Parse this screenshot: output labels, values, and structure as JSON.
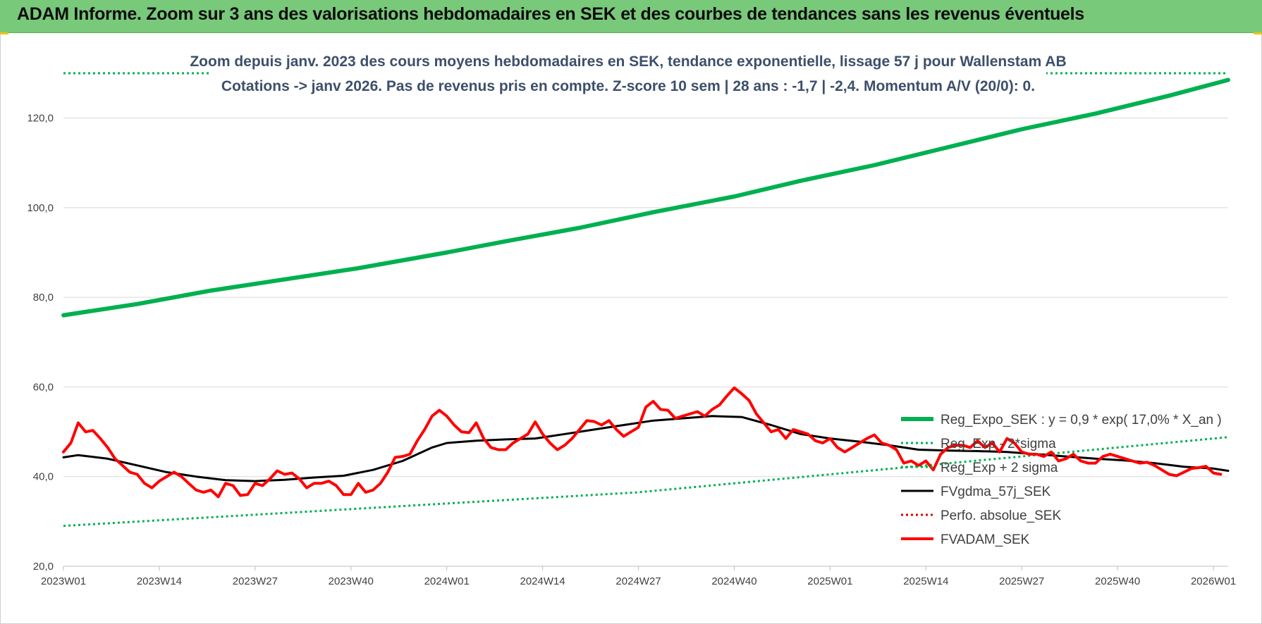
{
  "header": {
    "title": "ADAM Informe. Zoom sur 3 ans des valorisations hebdomadaires en SEK et des courbes de tendances sans les revenus éventuels"
  },
  "chart_data": {
    "type": "line",
    "subtitle_line1": "Zoom depuis janv. 2023 des cours moyens hebdomadaires en SEK, tendance exponentielle, lissage 57 j pour Wallenstam AB",
    "subtitle_line2": "Cotations -> janv 2026. Pas de revenus pris en compte. Z-score 10 sem | 28 ans : -1,7 | -2,4. Momentum A/V (20/0): 0.",
    "xlabel": "",
    "ylabel": "",
    "ylim": [
      20,
      130
    ],
    "xlim": [
      0,
      158
    ],
    "y_ticks": [
      {
        "value": 20,
        "label": "20,0"
      },
      {
        "value": 40,
        "label": "40,0"
      },
      {
        "value": 60,
        "label": "60,0"
      },
      {
        "value": 80,
        "label": "80,0"
      },
      {
        "value": 100,
        "label": "100,0"
      },
      {
        "value": 120,
        "label": "120,0"
      }
    ],
    "x_ticks": [
      {
        "index": 0,
        "label": "2023W01"
      },
      {
        "index": 13,
        "label": "2023W14"
      },
      {
        "index": 26,
        "label": "2023W27"
      },
      {
        "index": 39,
        "label": "2023W40"
      },
      {
        "index": 52,
        "label": "2024W01"
      },
      {
        "index": 65,
        "label": "2024W14"
      },
      {
        "index": 78,
        "label": "2024W27"
      },
      {
        "index": 91,
        "label": "2024W40"
      },
      {
        "index": 104,
        "label": "2025W01"
      },
      {
        "index": 117,
        "label": "2025W14"
      },
      {
        "index": 130,
        "label": "2025W27"
      },
      {
        "index": 143,
        "label": "2025W40"
      },
      {
        "index": 156,
        "label": "2026W01"
      }
    ],
    "legend_position": "right",
    "series": [
      {
        "name": "Reg_Expo_SEK : y = 0,9 * exp( 17,0% * X_an )",
        "color": "#00b050",
        "style": "solid",
        "width": 6,
        "points": [
          [
            0,
            76.0
          ],
          [
            10,
            78.5
          ],
          [
            20,
            81.5
          ],
          [
            30,
            84.0
          ],
          [
            40,
            86.5
          ],
          [
            52,
            90.0
          ],
          [
            60,
            92.5
          ],
          [
            70,
            95.5
          ],
          [
            80,
            99.0
          ],
          [
            91,
            102.5
          ],
          [
            100,
            106.0
          ],
          [
            110,
            109.5
          ],
          [
            120,
            113.5
          ],
          [
            130,
            117.5
          ],
          [
            140,
            121.0
          ],
          [
            150,
            125.0
          ],
          [
            158,
            128.5
          ]
        ]
      },
      {
        "name": "Reg_Exp - 2*sigma",
        "color": "#00b050",
        "style": "dotted",
        "width": 3,
        "points": [
          [
            0,
            29.0
          ],
          [
            26,
            31.5
          ],
          [
            52,
            34.0
          ],
          [
            78,
            36.5
          ],
          [
            104,
            40.5
          ],
          [
            130,
            44.5
          ],
          [
            158,
            48.8
          ]
        ]
      },
      {
        "name": "Reg_Exp + 2 sigma",
        "color": "#00b050",
        "style": "dotted",
        "width": 3,
        "points": [
          [
            0,
            130.0
          ],
          [
            158,
            130.0
          ]
        ]
      },
      {
        "name": "FVgdma_57j_SEK",
        "color": "#000000",
        "style": "solid",
        "width": 3,
        "points": [
          [
            0,
            44.3
          ],
          [
            2,
            44.8
          ],
          [
            6,
            44.0
          ],
          [
            10,
            42.5
          ],
          [
            14,
            41.0
          ],
          [
            18,
            40.0
          ],
          [
            22,
            39.2
          ],
          [
            26,
            39.0
          ],
          [
            30,
            39.3
          ],
          [
            34,
            39.8
          ],
          [
            38,
            40.2
          ],
          [
            42,
            41.5
          ],
          [
            46,
            43.5
          ],
          [
            50,
            46.5
          ],
          [
            52,
            47.5
          ],
          [
            56,
            48.0
          ],
          [
            60,
            48.3
          ],
          [
            64,
            48.5
          ],
          [
            68,
            49.5
          ],
          [
            72,
            50.5
          ],
          [
            76,
            51.5
          ],
          [
            80,
            52.5
          ],
          [
            84,
            53.0
          ],
          [
            88,
            53.5
          ],
          [
            92,
            53.3
          ],
          [
            96,
            51.5
          ],
          [
            100,
            49.5
          ],
          [
            104,
            48.5
          ],
          [
            108,
            47.8
          ],
          [
            112,
            47.0
          ],
          [
            116,
            46.0
          ],
          [
            120,
            45.8
          ],
          [
            124,
            45.7
          ],
          [
            128,
            45.5
          ],
          [
            132,
            45.0
          ],
          [
            136,
            44.5
          ],
          [
            140,
            44.0
          ],
          [
            144,
            43.6
          ],
          [
            148,
            43.0
          ],
          [
            152,
            42.2
          ],
          [
            156,
            41.8
          ],
          [
            158,
            41.3
          ]
        ]
      },
      {
        "name": "Perfo. absolue_SEK",
        "color": "#e00000",
        "style": "dotted",
        "width": 3,
        "points": []
      },
      {
        "name": "FVADAM_SEK",
        "color": "#ff0000",
        "style": "solid",
        "width": 4,
        "points": [
          [
            0,
            45.5
          ],
          [
            1,
            47.5
          ],
          [
            2,
            52.0
          ],
          [
            3,
            50.0
          ],
          [
            4,
            50.3
          ],
          [
            5,
            48.5
          ],
          [
            6,
            46.5
          ],
          [
            7,
            44.0
          ],
          [
            8,
            42.5
          ],
          [
            9,
            41.0
          ],
          [
            10,
            40.5
          ],
          [
            11,
            38.5
          ],
          [
            12,
            37.5
          ],
          [
            13,
            39.0
          ],
          [
            14,
            40.0
          ],
          [
            15,
            41.0
          ],
          [
            16,
            40.0
          ],
          [
            17,
            38.5
          ],
          [
            18,
            37.0
          ],
          [
            19,
            36.5
          ],
          [
            20,
            37.0
          ],
          [
            21,
            35.5
          ],
          [
            22,
            38.5
          ],
          [
            23,
            38.0
          ],
          [
            24,
            35.8
          ],
          [
            25,
            36.0
          ],
          [
            26,
            38.5
          ],
          [
            27,
            38.0
          ],
          [
            28,
            39.5
          ],
          [
            29,
            41.3
          ],
          [
            30,
            40.5
          ],
          [
            31,
            40.8
          ],
          [
            32,
            39.5
          ],
          [
            33,
            37.5
          ],
          [
            34,
            38.5
          ],
          [
            35,
            38.5
          ],
          [
            36,
            39.0
          ],
          [
            37,
            38.0
          ],
          [
            38,
            36.0
          ],
          [
            39,
            36.0
          ],
          [
            40,
            38.5
          ],
          [
            41,
            36.5
          ],
          [
            42,
            37.0
          ],
          [
            43,
            38.5
          ],
          [
            44,
            41.0
          ],
          [
            45,
            44.3
          ],
          [
            46,
            44.5
          ],
          [
            47,
            45.0
          ],
          [
            48,
            48.0
          ],
          [
            49,
            50.5
          ],
          [
            50,
            53.5
          ],
          [
            51,
            54.8
          ],
          [
            52,
            53.5
          ],
          [
            53,
            51.5
          ],
          [
            54,
            50.0
          ],
          [
            55,
            49.8
          ],
          [
            56,
            52.0
          ],
          [
            57,
            48.5
          ],
          [
            58,
            46.5
          ],
          [
            59,
            46.0
          ],
          [
            60,
            46.0
          ],
          [
            61,
            47.5
          ],
          [
            62,
            48.5
          ],
          [
            63,
            49.5
          ],
          [
            64,
            52.2
          ],
          [
            65,
            49.5
          ],
          [
            66,
            47.5
          ],
          [
            67,
            46.0
          ],
          [
            68,
            47.0
          ],
          [
            69,
            48.5
          ],
          [
            70,
            50.5
          ],
          [
            71,
            52.5
          ],
          [
            72,
            52.3
          ],
          [
            73,
            51.5
          ],
          [
            74,
            52.5
          ],
          [
            75,
            50.5
          ],
          [
            76,
            49.0
          ],
          [
            77,
            50.0
          ],
          [
            78,
            51.0
          ],
          [
            79,
            55.5
          ],
          [
            80,
            56.8
          ],
          [
            81,
            55.0
          ],
          [
            82,
            54.8
          ],
          [
            83,
            53.0
          ],
          [
            84,
            53.5
          ],
          [
            85,
            54.0
          ],
          [
            86,
            54.5
          ],
          [
            87,
            53.5
          ],
          [
            88,
            55.0
          ],
          [
            89,
            56.0
          ],
          [
            90,
            58.0
          ],
          [
            91,
            59.8
          ],
          [
            92,
            58.5
          ],
          [
            93,
            57.0
          ],
          [
            94,
            54.0
          ],
          [
            95,
            52.0
          ],
          [
            96,
            50.0
          ],
          [
            97,
            50.5
          ],
          [
            98,
            48.5
          ],
          [
            99,
            50.5
          ],
          [
            100,
            50.0
          ],
          [
            101,
            49.5
          ],
          [
            102,
            48.0
          ],
          [
            103,
            47.5
          ],
          [
            104,
            48.5
          ],
          [
            105,
            46.5
          ],
          [
            106,
            45.5
          ],
          [
            107,
            46.5
          ],
          [
            108,
            47.5
          ],
          [
            109,
            48.5
          ],
          [
            110,
            49.3
          ],
          [
            111,
            47.5
          ],
          [
            112,
            47.0
          ],
          [
            113,
            46.0
          ],
          [
            114,
            43.0
          ],
          [
            115,
            43.5
          ],
          [
            116,
            42.5
          ],
          [
            117,
            43.5
          ],
          [
            118,
            41.5
          ],
          [
            119,
            45.0
          ],
          [
            120,
            46.5
          ],
          [
            121,
            47.0
          ],
          [
            122,
            47.0
          ],
          [
            123,
            46.5
          ],
          [
            124,
            48.0
          ],
          [
            125,
            46.5
          ],
          [
            126,
            47.5
          ],
          [
            127,
            45.5
          ],
          [
            128,
            48.5
          ],
          [
            129,
            47.5
          ],
          [
            130,
            45.5
          ],
          [
            131,
            45.0
          ],
          [
            132,
            45.0
          ],
          [
            133,
            44.5
          ],
          [
            134,
            45.5
          ],
          [
            135,
            43.5
          ],
          [
            136,
            44.0
          ],
          [
            137,
            45.0
          ],
          [
            138,
            43.5
          ],
          [
            139,
            43.0
          ],
          [
            140,
            43.0
          ],
          [
            141,
            44.5
          ],
          [
            142,
            45.0
          ],
          [
            143,
            44.5
          ],
          [
            144,
            44.0
          ],
          [
            145,
            43.5
          ],
          [
            146,
            43.0
          ],
          [
            147,
            43.2
          ],
          [
            148,
            42.5
          ],
          [
            149,
            41.5
          ],
          [
            150,
            40.5
          ],
          [
            151,
            40.2
          ],
          [
            152,
            41.0
          ],
          [
            153,
            41.8
          ],
          [
            154,
            42.0
          ],
          [
            155,
            42.3
          ],
          [
            156,
            40.8
          ],
          [
            157,
            40.5
          ]
        ]
      }
    ]
  }
}
